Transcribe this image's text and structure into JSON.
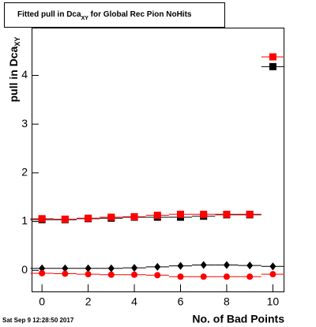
{
  "chart_data": {
    "type": "scatter",
    "title": {
      "main": "Fitted pull in Dca",
      "sub": "XY",
      "rest": " for Global Rec Pion NoHits"
    },
    "ylabel": {
      "main": "pull in Dca",
      "sub": "XY"
    },
    "xlabel": "No. of Bad Points",
    "timestamp": "Sat Sep  9 12:28:50 2017",
    "x": [
      0,
      1,
      2,
      3,
      4,
      5,
      6,
      7,
      8,
      9,
      10
    ],
    "xerr": 0.5,
    "xlim": [
      -0.45,
      10.5
    ],
    "ylim": [
      -0.45,
      4.98
    ],
    "xticks": [
      0,
      2,
      4,
      6,
      8,
      10
    ],
    "yticks": [
      0,
      1,
      2,
      3,
      4
    ],
    "grid": false,
    "series": [
      {
        "color": "#000000",
        "marker": "square",
        "values": [
          1.04,
          1.04,
          1.06,
          1.07,
          1.09,
          1.09,
          1.09,
          1.11,
          1.14,
          1.14,
          4.18
        ]
      },
      {
        "color": "#ff0000",
        "marker": "square",
        "values": [
          1.06,
          1.05,
          1.07,
          1.09,
          1.1,
          1.13,
          1.15,
          1.15,
          1.15,
          1.15,
          4.38
        ]
      },
      {
        "color": "#000000",
        "marker": "diamond",
        "values": [
          0.04,
          0.04,
          0.04,
          0.04,
          0.05,
          0.07,
          0.09,
          0.11,
          0.11,
          0.1,
          0.08
        ]
      },
      {
        "color": "#ff0000",
        "marker": "circle",
        "values": [
          -0.06,
          -0.07,
          -0.08,
          -0.09,
          -0.09,
          -0.1,
          -0.13,
          -0.13,
          -0.13,
          -0.13,
          -0.08
        ]
      }
    ]
  }
}
